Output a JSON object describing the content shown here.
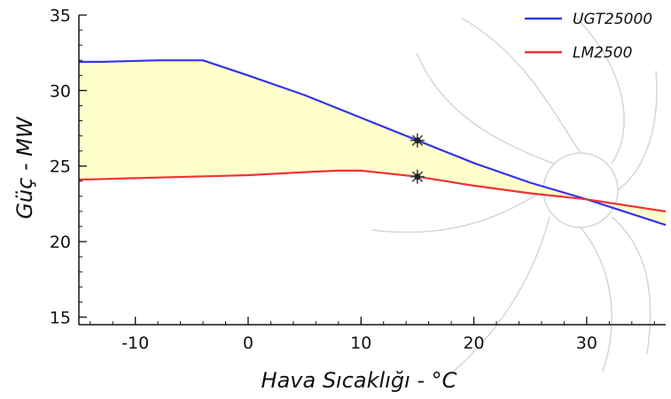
{
  "chart_data": {
    "type": "line",
    "xlabel": "Hava Sıcaklığı - °C",
    "ylabel": "Güç - MW",
    "xlim": [
      -15,
      37
    ],
    "ylim": [
      14.5,
      35
    ],
    "xticks": [
      -10,
      0,
      10,
      20,
      30
    ],
    "yticks": [
      15,
      20,
      25,
      30,
      35
    ],
    "legend_position": "top-right",
    "grid": false,
    "fill_between": {
      "color": "#ffffcc"
    },
    "series": [
      {
        "name": "UGT25000",
        "color": "#3333ee",
        "x": [
          -15,
          -13,
          -8,
          -4,
          0,
          5,
          10,
          15,
          20,
          25,
          30,
          37
        ],
        "y": [
          31.9,
          31.9,
          32.0,
          32.0,
          31.0,
          29.7,
          28.2,
          26.7,
          25.2,
          23.9,
          22.8,
          21.1
        ]
      },
      {
        "name": "LM2500",
        "color": "#ee3333",
        "x": [
          -15,
          -10,
          -5,
          0,
          5,
          8,
          10,
          15,
          20,
          25,
          30,
          37
        ],
        "y": [
          24.1,
          24.2,
          24.3,
          24.4,
          24.6,
          24.7,
          24.7,
          24.3,
          23.7,
          23.2,
          22.8,
          22.0
        ]
      }
    ],
    "markers": [
      {
        "x": 15,
        "y": 26.7
      },
      {
        "x": 15,
        "y": 24.3
      }
    ]
  }
}
